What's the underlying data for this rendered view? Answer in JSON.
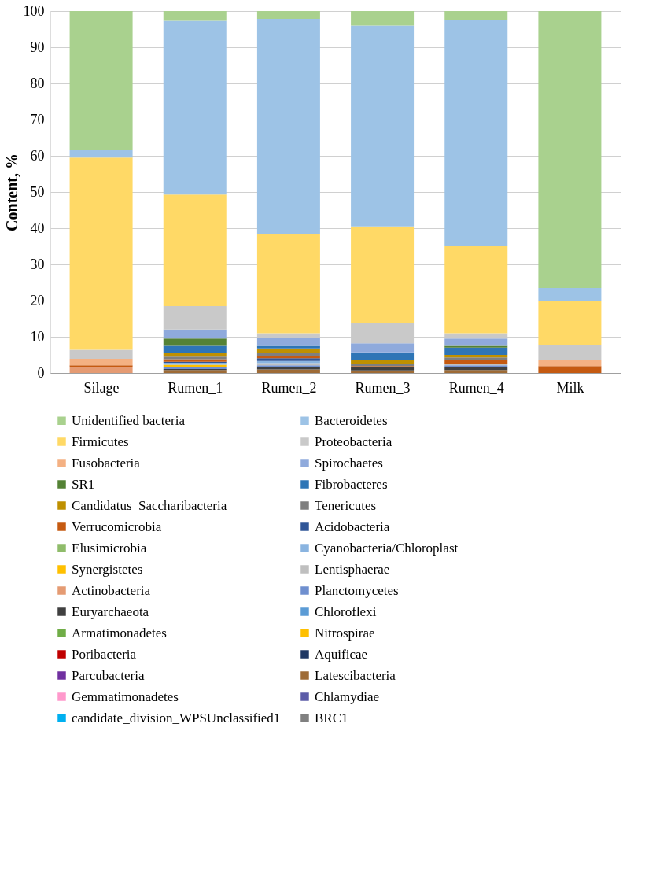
{
  "chart_data": {
    "type": "bar",
    "stacked": true,
    "ylabel": "Content, %",
    "categories": [
      "Silage",
      "Rumen_1",
      "Rumen_2",
      "Rumen_3",
      "Rumen_4",
      "Milk"
    ],
    "ylim": [
      0,
      100
    ],
    "yticks": [
      0,
      10,
      20,
      30,
      40,
      50,
      60,
      70,
      80,
      90,
      100
    ],
    "grid": "y",
    "legend": "bottom",
    "series": [
      {
        "name": "BRC1",
        "color": "#808080",
        "values": [
          null,
          null,
          null,
          null,
          null,
          null
        ]
      },
      {
        "name": "candidate_division_WPSUnclassified1",
        "color": "#00b0f0",
        "values": [
          null,
          null,
          null,
          null,
          null,
          null
        ]
      },
      {
        "name": "Chlamydiae",
        "color": "#5c5ca8",
        "values": [
          null,
          null,
          null,
          null,
          null,
          null
        ]
      },
      {
        "name": "Gemmatimonadetes",
        "color": "#ff99cc",
        "values": [
          null,
          null,
          null,
          null,
          null,
          null
        ]
      },
      {
        "name": "Latescibacteria",
        "color": "#9e6b36",
        "values": [
          null,
          0.8,
          1.0,
          0.7,
          0.8,
          null
        ]
      },
      {
        "name": "Parcubacteria",
        "color": "#7030a0",
        "values": [
          null,
          null,
          null,
          null,
          null,
          null
        ]
      },
      {
        "name": "Aquificae",
        "color": "#1f3864",
        "values": [
          null,
          null,
          null,
          null,
          null,
          null
        ]
      },
      {
        "name": "Poribacteria",
        "color": "#c00000",
        "values": [
          null,
          null,
          null,
          null,
          null,
          null
        ]
      },
      {
        "name": "Nitrospirae",
        "color": "#ffc000",
        "values": [
          null,
          null,
          null,
          null,
          null,
          null
        ]
      },
      {
        "name": "Armatimonadetes",
        "color": "#70ad47",
        "values": [
          null,
          null,
          null,
          null,
          null,
          null
        ]
      },
      {
        "name": "Chloroflexi",
        "color": "#5b9bd5",
        "values": [
          null,
          null,
          null,
          null,
          null,
          null
        ]
      },
      {
        "name": "Euryarchaeota",
        "color": "#404040",
        "values": [
          null,
          0.3,
          0.5,
          0.8,
          0.8,
          null
        ]
      },
      {
        "name": "Planctomycetes",
        "color": "#6f8fcf",
        "values": [
          null,
          0.4,
          0.6,
          null,
          0.5,
          null
        ]
      },
      {
        "name": "Actinobacteria",
        "color": "#e59b73",
        "values": [
          1.5,
          null,
          null,
          null,
          null,
          null
        ]
      },
      {
        "name": "Lentisphaerae",
        "color": "#bfbfbf",
        "values": [
          null,
          null,
          0.6,
          null,
          0.5,
          null
        ]
      },
      {
        "name": "Synergistetes",
        "color": "#ffc000",
        "values": [
          null,
          0.8,
          null,
          null,
          null,
          null
        ]
      },
      {
        "name": "Cyanobacteria/Chloroplast",
        "color": "#8ab4e0",
        "values": [
          null,
          0.5,
          0.6,
          null,
          null,
          null
        ]
      },
      {
        "name": "Elusimicrobia",
        "color": "#8fbc6a",
        "values": [
          null,
          null,
          null,
          null,
          null,
          null
        ]
      },
      {
        "name": "Acidobacteria",
        "color": "#2f5597",
        "values": [
          null,
          0.3,
          0.8,
          null,
          null,
          null
        ]
      },
      {
        "name": "Verrucomicrobia",
        "color": "#c55a11",
        "values": [
          0.6,
          0.7,
          0.7,
          0.4,
          1.0,
          1.9
        ]
      },
      {
        "name": "Tenericutes",
        "color": "#7f7f7f",
        "values": [
          null,
          0.7,
          0.7,
          0.5,
          0.7,
          null
        ]
      },
      {
        "name": "Candidatus_Saccharibacteria",
        "color": "#bf9000",
        "values": [
          null,
          1.0,
          1.3,
          1.3,
          0.7,
          null
        ]
      },
      {
        "name": "Fibrobacteres",
        "color": "#2e75b6",
        "values": [
          null,
          2.0,
          0.7,
          2.0,
          2.0,
          null
        ]
      },
      {
        "name": "SR1",
        "color": "#548235",
        "values": [
          null,
          2.0,
          null,
          null,
          0.5,
          null
        ]
      },
      {
        "name": "Spirochaetes",
        "color": "#8faadc",
        "values": [
          null,
          2.5,
          2.3,
          2.5,
          2.0,
          null
        ]
      },
      {
        "name": "Fusobacteria",
        "color": "#f4b183",
        "values": [
          1.8,
          null,
          null,
          null,
          null,
          1.8
        ]
      },
      {
        "name": "Proteobacteria",
        "color": "#c9c9c9",
        "values": [
          2.5,
          6.5,
          1.2,
          5.6,
          1.5,
          4.1
        ]
      },
      {
        "name": "Firmicutes",
        "color": "#ffd966",
        "values": [
          53.1,
          30.8,
          27.5,
          26.7,
          24.0,
          12.0
        ]
      },
      {
        "name": "Bacteroidetes",
        "color": "#9dc3e6",
        "values": [
          2.0,
          48.0,
          59.3,
          55.5,
          62.5,
          3.7
        ]
      },
      {
        "name": "Unidentified bacteria",
        "color": "#a9d18e",
        "values": [
          38.5,
          2.7,
          2.2,
          4.0,
          2.5,
          76.5
        ]
      }
    ]
  }
}
